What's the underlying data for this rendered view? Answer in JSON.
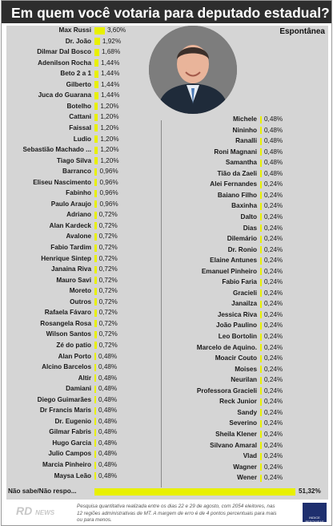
{
  "header": {
    "title": "Em quem você votaria para deputado estadual?"
  },
  "subtitle": "Espontânea",
  "footer": {
    "text": "Pesquisa quantitativa realizada entre os dias 22 e 29 de agosto, com 2054 eleitores, nas 12 regiões administrativas de MT. A margem de erro é de 4 pontos percentuais para mais ou para menos.",
    "logo_text": "RD",
    "logo_sub": "NEWS",
    "badge_text": "INDICE PESQUISAS"
  },
  "colors": {
    "bar": "#e8f000",
    "header": "#2d2d2d",
    "panel": "#d5d5d5"
  },
  "chart_data": {
    "type": "bar",
    "title": "Em quem você votaria para deputado estadual?",
    "subtitle": "Espontânea",
    "value_suffix": "%",
    "left_column": [
      {
        "label": "Max Russi",
        "value": 3.6,
        "text": "3,60%"
      },
      {
        "label": "Dr. João",
        "value": 1.92,
        "text": "1,92%"
      },
      {
        "label": "Dilmar Dal Bosco",
        "value": 1.68,
        "text": "1,68%"
      },
      {
        "label": "Adenilson Rocha",
        "value": 1.44,
        "text": "1,44%"
      },
      {
        "label": "Beto 2 a 1",
        "value": 1.44,
        "text": "1,44%"
      },
      {
        "label": "Gilberto",
        "value": 1.44,
        "text": "1,44%"
      },
      {
        "label": "Juca do Guarana",
        "value": 1.44,
        "text": "1,44%"
      },
      {
        "label": "Botelho",
        "value": 1.2,
        "text": "1,20%"
      },
      {
        "label": "Cattani",
        "value": 1.2,
        "text": "1,20%"
      },
      {
        "label": "Faissal",
        "value": 1.2,
        "text": "1,20%"
      },
      {
        "label": "Ludio",
        "value": 1.2,
        "text": "1,20%"
      },
      {
        "label": "Sebastião Machado ...",
        "value": 1.2,
        "text": "1,20%"
      },
      {
        "label": "Tiago Silva",
        "value": 1.2,
        "text": "1,20%"
      },
      {
        "label": "Barranco",
        "value": 0.96,
        "text": "0,96%"
      },
      {
        "label": "Eliseu Nascimento",
        "value": 0.96,
        "text": "0,96%"
      },
      {
        "label": "Fabinho",
        "value": 0.96,
        "text": "0,96%"
      },
      {
        "label": "Paulo Araujo",
        "value": 0.96,
        "text": "0,96%"
      },
      {
        "label": "Adriano",
        "value": 0.72,
        "text": "0,72%"
      },
      {
        "label": "Alan Kardeck",
        "value": 0.72,
        "text": "0,72%"
      },
      {
        "label": "Avalone",
        "value": 0.72,
        "text": "0,72%"
      },
      {
        "label": "Fabio Tardim",
        "value": 0.72,
        "text": "0,72%"
      },
      {
        "label": "Henrique Sintep",
        "value": 0.72,
        "text": "0,72%"
      },
      {
        "label": "Janaina Riva",
        "value": 0.72,
        "text": "0,72%"
      },
      {
        "label": "Mauro Savi",
        "value": 0.72,
        "text": "0,72%"
      },
      {
        "label": "Moreto",
        "value": 0.72,
        "text": "0,72%"
      },
      {
        "label": "Outros",
        "value": 0.72,
        "text": "0,72%"
      },
      {
        "label": "Rafaela Fávaro",
        "value": 0.72,
        "text": "0,72%"
      },
      {
        "label": "Rosangela Rosa",
        "value": 0.72,
        "text": "0,72%"
      },
      {
        "label": "Wilson Santos",
        "value": 0.72,
        "text": "0,72%"
      },
      {
        "label": "Zé do patio",
        "value": 0.72,
        "text": "0,72%"
      },
      {
        "label": "Alan Porto",
        "value": 0.48,
        "text": "0,48%"
      },
      {
        "label": "Alcino Barcelos",
        "value": 0.48,
        "text": "0,48%"
      },
      {
        "label": "Altir",
        "value": 0.48,
        "text": "0,48%"
      },
      {
        "label": "Damiani",
        "value": 0.48,
        "text": "0,48%"
      },
      {
        "label": "Diego Guimarães",
        "value": 0.48,
        "text": "0,48%"
      },
      {
        "label": "Dr Francis Maris",
        "value": 0.48,
        "text": "0,48%"
      },
      {
        "label": "Dr. Eugenio",
        "value": 0.48,
        "text": "0,48%"
      },
      {
        "label": "Gilmar Fabris",
        "value": 0.48,
        "text": "0,48%"
      },
      {
        "label": "Hugo Garcia",
        "value": 0.48,
        "text": "0,48%"
      },
      {
        "label": "Julio Campos",
        "value": 0.48,
        "text": "0,48%"
      },
      {
        "label": "Marcia Pinheiro",
        "value": 0.48,
        "text": "0,48%"
      },
      {
        "label": "Maysa Leão",
        "value": 0.48,
        "text": "0,48%"
      }
    ],
    "right_column": [
      {
        "label": "Michele",
        "value": 0.48,
        "text": "0,48%"
      },
      {
        "label": "Nininho",
        "value": 0.48,
        "text": "0,48%"
      },
      {
        "label": "Ranalli",
        "value": 0.48,
        "text": "0,48%"
      },
      {
        "label": "Roni Magnani",
        "value": 0.48,
        "text": "0,48%"
      },
      {
        "label": "Samantha",
        "value": 0.48,
        "text": "0,48%"
      },
      {
        "label": "Tião da Zaeli",
        "value": 0.48,
        "text": "0,48%"
      },
      {
        "label": "Alei Fernandes",
        "value": 0.24,
        "text": "0,24%"
      },
      {
        "label": "Baiano Filho",
        "value": 0.24,
        "text": "0,24%"
      },
      {
        "label": "Baxinha",
        "value": 0.24,
        "text": "0,24%"
      },
      {
        "label": "Dalto",
        "value": 0.24,
        "text": "0,24%"
      },
      {
        "label": "Dias",
        "value": 0.24,
        "text": "0,24%"
      },
      {
        "label": "Dilemário",
        "value": 0.24,
        "text": "0,24%"
      },
      {
        "label": "Dr. Ronio",
        "value": 0.24,
        "text": "0,24%"
      },
      {
        "label": "Elaine Antunes",
        "value": 0.24,
        "text": "0,24%"
      },
      {
        "label": "Emanuel Pinheiro",
        "value": 0.24,
        "text": "0,24%"
      },
      {
        "label": "Fabio Faria",
        "value": 0.24,
        "text": "0,24%"
      },
      {
        "label": "Gracieli",
        "value": 0.24,
        "text": "0,24%"
      },
      {
        "label": "Janailza",
        "value": 0.24,
        "text": "0,24%"
      },
      {
        "label": "Jessica Riva",
        "value": 0.24,
        "text": "0,24%"
      },
      {
        "label": "João Paulino",
        "value": 0.24,
        "text": "0,24%"
      },
      {
        "label": "Leo Bortolin",
        "value": 0.24,
        "text": "0,24%"
      },
      {
        "label": "Marcelo de Aquino.",
        "value": 0.24,
        "text": "0,24%"
      },
      {
        "label": "Moacir Couto",
        "value": 0.24,
        "text": "0,24%"
      },
      {
        "label": "Moises",
        "value": 0.24,
        "text": "0,24%"
      },
      {
        "label": "Neurilan",
        "value": 0.24,
        "text": "0,24%"
      },
      {
        "label": "Professora Gracieli",
        "value": 0.24,
        "text": "0,24%"
      },
      {
        "label": "Reck Junior",
        "value": 0.24,
        "text": "0,24%"
      },
      {
        "label": "Sandy",
        "value": 0.24,
        "text": "0,24%"
      },
      {
        "label": "Severino",
        "value": 0.24,
        "text": "0,24%"
      },
      {
        "label": "Sheila Klener",
        "value": 0.24,
        "text": "0,24%"
      },
      {
        "label": "Silvano Amaral",
        "value": 0.24,
        "text": "0,24%"
      },
      {
        "label": "Vlad",
        "value": 0.24,
        "text": "0,24%"
      },
      {
        "label": "Wagner",
        "value": 0.24,
        "text": "0,24%"
      },
      {
        "label": "Wener",
        "value": 0.24,
        "text": "0,24%"
      }
    ],
    "bottom_row": {
      "label": "Não sabe/Não respo...",
      "value": 51.32,
      "text": "51,32%"
    }
  }
}
